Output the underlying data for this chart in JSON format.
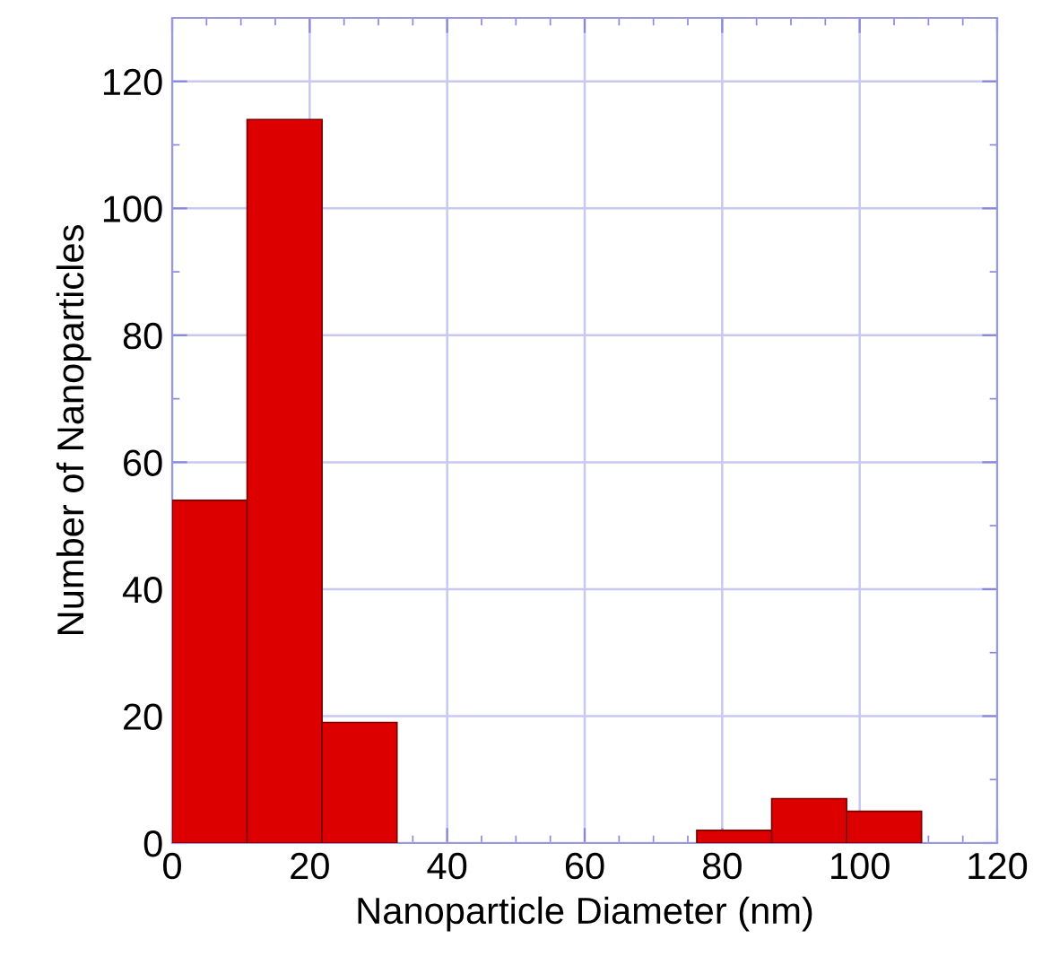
{
  "chart_data": {
    "type": "histogram",
    "xlabel": "Nanoparticle Diameter (nm)",
    "ylabel": "Number of Nanoparticles",
    "bins": [
      0,
      10.9,
      21.8,
      32.7,
      43.6,
      54.5,
      65.4,
      76.3,
      87.2,
      98.1,
      109
    ],
    "values": [
      54,
      114,
      19,
      0,
      0,
      0,
      0,
      2,
      7,
      5
    ],
    "color": "#dd0000",
    "xlim": [
      0,
      120
    ],
    "ylim": [
      0,
      130
    ],
    "xticks": [
      0,
      {
        "value": 5,
        "label": null
      },
      {
        "value": 10,
        "label": null
      },
      {
        "value": 15,
        "label": null
      },
      20,
      {
        "value": 25,
        "label": null
      },
      {
        "value": 30,
        "label": null
      },
      {
        "value": 35,
        "label": null
      },
      40,
      {
        "value": 45,
        "label": null
      },
      {
        "value": 50,
        "label": null
      },
      {
        "value": 55,
        "label": null
      },
      60,
      {
        "value": 65,
        "label": null
      },
      {
        "value": 70,
        "label": null
      },
      {
        "value": 75,
        "label": null
      },
      80,
      {
        "value": 85,
        "label": null
      },
      {
        "value": 90,
        "label": null
      },
      {
        "value": 95,
        "label": null
      },
      100,
      {
        "value": 105,
        "label": null
      },
      {
        "value": 110,
        "label": null
      },
      {
        "value": 115,
        "label": null
      },
      120
    ],
    "yticks": [
      0,
      {
        "value": 10,
        "label": null
      },
      20,
      {
        "value": 30,
        "label": null
      },
      40,
      {
        "value": 50,
        "label": null
      },
      60,
      {
        "value": 70,
        "label": null
      },
      80,
      {
        "value": 90,
        "label": null
      },
      100,
      {
        "value": 110,
        "label": null
      },
      120
    ],
    "grid": true
  }
}
